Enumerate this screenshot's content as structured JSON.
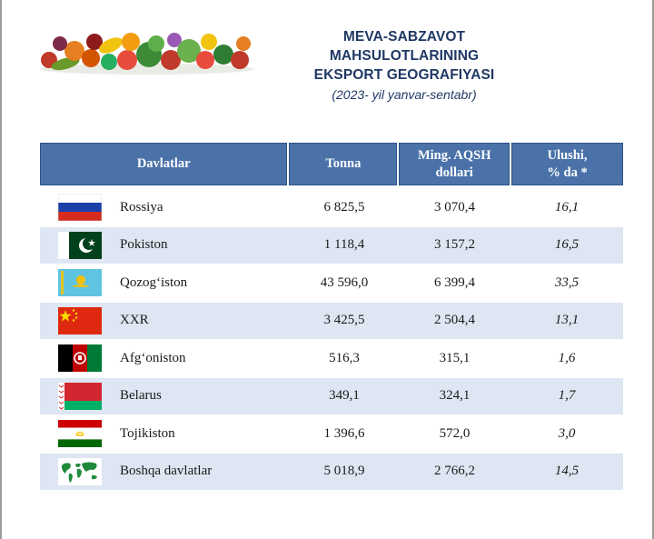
{
  "header": {
    "title_line1": "MEVA-SABZAVOT MAHSULOTLARINING",
    "title_line2": "EKSPORT GEOGRAFIYASI",
    "subtitle": "(2023- yil yanvar-sentabr)"
  },
  "table": {
    "headers": {
      "country": "Davlatlar",
      "tonnes": "Tonna",
      "usd_line1": "Ming. AQSH",
      "usd_line2": "dollari",
      "share_line1": "Ulushi,",
      "share_line2": "% da *"
    },
    "rows": [
      {
        "flag": "russia-flag-icon",
        "country": "Rossiya",
        "tonnes": "6 825,5",
        "usd": "3 070,4",
        "share": "16,1"
      },
      {
        "flag": "pakistan-flag-icon",
        "country": "Pokiston",
        "tonnes": "1 118,4",
        "usd": "3 157,2",
        "share": "16,5"
      },
      {
        "flag": "kazakhstan-flag-icon",
        "country": "Qozog‘iston",
        "tonnes": "43 596,0",
        "usd": "6 399,4",
        "share": "33,5"
      },
      {
        "flag": "china-flag-icon",
        "country": "XXR",
        "tonnes": "3 425,5",
        "usd": "2 504,4",
        "share": "13,1"
      },
      {
        "flag": "afghanistan-flag-icon",
        "country": "Afg‘oniston",
        "tonnes": "516,3",
        "usd": "315,1",
        "share": "1,6"
      },
      {
        "flag": "belarus-flag-icon",
        "country": "Belarus",
        "tonnes": "349,1",
        "usd": "324,1",
        "share": "1,7"
      },
      {
        "flag": "tajikistan-flag-icon",
        "country": "Tojikiston",
        "tonnes": "1 396,6",
        "usd": "572,0",
        "share": "3,0"
      },
      {
        "flag": "world-map-icon",
        "country": "Boshqa davlatlar",
        "tonnes": "5 018,9",
        "usd": "2 766,2",
        "share": "14,5"
      }
    ]
  },
  "colors": {
    "title": "#1f3864",
    "header_bg": "#4a72a8",
    "stripe": "#dde6f2"
  }
}
